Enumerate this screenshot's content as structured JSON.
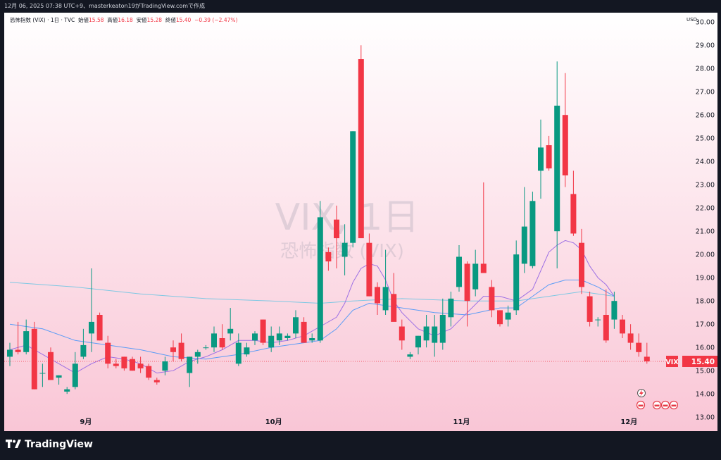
{
  "caption": "12月 06, 2025 07:38 UTC+9、masterkeaton19がTradingView.comで作成",
  "legend": {
    "symbol": "恐怖指数 (VIX) · 1日 · TVC",
    "open_label": "始値",
    "open": "15.58",
    "high_label": "高値",
    "high": "16.18",
    "low_label": "安値",
    "low": "15.28",
    "close_label": "終値",
    "close": "15.40",
    "change": "−0.39 (−2.47%)"
  },
  "watermark": {
    "main": "VIX, 1日",
    "sub": "恐怖指数 (VIX)"
  },
  "currency": "USD",
  "last_price": {
    "symbol": "VIX",
    "value": "15.40"
  },
  "brand": {
    "name": "TradingView",
    "icon": "tradingview-logo-icon"
  },
  "colors": {
    "up": "#089981",
    "down": "#f23645",
    "ma_short": "#9c6fe4",
    "ma_mid": "#5b9cf6",
    "ma_long": "#7ec8e3"
  },
  "chart_data": {
    "type": "candlestick",
    "ylim": [
      12.4,
      30.4
    ],
    "y_ticks": [
      "13.00",
      "14.00",
      "15.00",
      "16.00",
      "17.00",
      "18.00",
      "19.00",
      "20.00",
      "21.00",
      "22.00",
      "23.00",
      "24.00",
      "25.00",
      "26.00",
      "27.00",
      "28.00",
      "29.00",
      "30.00"
    ],
    "x_ticks": [
      "9月",
      "10月",
      "11月",
      "12月"
    ],
    "tick_index": [
      9.3,
      32.3,
      55.3,
      75.8
    ],
    "ohlc": [
      [
        15.6,
        16.2,
        15.2,
        15.9
      ],
      [
        15.9,
        17.1,
        15.7,
        15.8
      ],
      [
        15.8,
        17.2,
        15.7,
        16.7
      ],
      [
        16.8,
        17.1,
        14.2,
        14.2
      ],
      [
        14.9,
        15.3,
        14.3,
        14.9
      ],
      [
        15.8,
        16.0,
        14.6,
        14.6
      ],
      [
        14.7,
        14.8,
        14.4,
        14.8
      ],
      [
        14.1,
        14.3,
        14.0,
        14.2
      ],
      [
        14.3,
        15.8,
        14.2,
        15.3
      ],
      [
        15.6,
        16.8,
        15.5,
        16.1
      ],
      [
        16.6,
        19.4,
        15.8,
        17.1
      ],
      [
        17.4,
        17.5,
        16.3,
        16.3
      ],
      [
        16.2,
        16.5,
        15.1,
        15.3
      ],
      [
        15.3,
        15.5,
        15.1,
        15.2
      ],
      [
        15.6,
        15.6,
        15.0,
        15.1
      ],
      [
        15.5,
        15.6,
        15.0,
        15.0
      ],
      [
        15.3,
        15.6,
        14.9,
        15.1
      ],
      [
        15.2,
        15.3,
        14.6,
        14.7
      ],
      [
        14.6,
        14.7,
        14.4,
        14.5
      ],
      [
        15.0,
        15.6,
        14.8,
        15.4
      ],
      [
        16.0,
        16.3,
        15.4,
        15.8
      ],
      [
        16.2,
        16.6,
        15.4,
        15.5
      ],
      [
        14.9,
        15.6,
        14.3,
        15.6
      ],
      [
        15.6,
        15.9,
        15.3,
        15.8
      ],
      [
        16.0,
        16.1,
        15.9,
        16.0
      ],
      [
        16.0,
        16.9,
        15.8,
        16.6
      ],
      [
        16.4,
        17.0,
        15.9,
        16.0
      ],
      [
        16.6,
        17.7,
        16.3,
        16.8
      ],
      [
        15.3,
        16.6,
        15.2,
        16.2
      ],
      [
        15.7,
        16.2,
        15.6,
        16.0
      ],
      [
        16.3,
        16.7,
        16.1,
        16.6
      ],
      [
        17.2,
        17.2,
        16.1,
        16.2
      ],
      [
        16.0,
        16.9,
        15.8,
        16.5
      ],
      [
        16.3,
        16.9,
        16.1,
        16.6
      ],
      [
        16.4,
        16.6,
        16.3,
        16.5
      ],
      [
        16.6,
        17.6,
        16.4,
        17.3
      ],
      [
        17.1,
        17.3,
        16.3,
        16.2
      ],
      [
        16.3,
        16.6,
        16.2,
        16.4
      ],
      [
        16.3,
        22.3,
        16.2,
        21.6
      ],
      [
        20.1,
        20.3,
        19.3,
        19.7
      ],
      [
        21.5,
        22.1,
        19.4,
        20.7
      ],
      [
        19.9,
        21.3,
        19.1,
        20.5
      ],
      [
        20.5,
        25.3,
        20.3,
        25.3
      ],
      [
        28.4,
        29.0,
        20.8,
        20.7
      ],
      [
        20.5,
        20.9,
        18.2,
        18.2
      ],
      [
        18.6,
        18.8,
        17.4,
        17.9
      ],
      [
        17.6,
        20.2,
        17.4,
        18.6
      ],
      [
        18.3,
        19.2,
        17.2,
        17.1
      ],
      [
        16.9,
        17.2,
        15.9,
        16.3
      ],
      [
        15.6,
        15.8,
        15.5,
        15.7
      ],
      [
        16.0,
        16.5,
        15.7,
        16.5
      ],
      [
        16.3,
        17.4,
        16.0,
        16.9
      ],
      [
        16.2,
        17.4,
        15.6,
        16.9
      ],
      [
        16.2,
        18.1,
        15.9,
        17.4
      ],
      [
        17.3,
        18.4,
        16.9,
        18.1
      ],
      [
        18.6,
        20.4,
        18.4,
        19.9
      ],
      [
        19.6,
        19.7,
        16.9,
        18.0
      ],
      [
        18.5,
        20.2,
        18.2,
        19.6
      ],
      [
        19.6,
        23.1,
        19.3,
        19.2
      ],
      [
        18.6,
        18.9,
        17.3,
        17.6
      ],
      [
        17.6,
        17.6,
        16.9,
        17.0
      ],
      [
        17.2,
        17.8,
        16.9,
        17.5
      ],
      [
        17.6,
        20.6,
        17.4,
        20.0
      ],
      [
        19.6,
        22.9,
        19.2,
        21.2
      ],
      [
        19.5,
        22.7,
        19.4,
        22.3
      ],
      [
        23.6,
        25.8,
        22.4,
        24.6
      ],
      [
        24.7,
        25.1,
        23.6,
        23.7
      ],
      [
        21.0,
        28.3,
        19.4,
        26.4
      ],
      [
        26.0,
        27.8,
        22.9,
        23.4
      ],
      [
        22.6,
        23.6,
        20.8,
        20.9
      ],
      [
        20.5,
        21.1,
        18.3,
        18.6
      ],
      [
        18.2,
        18.4,
        16.9,
        17.1
      ],
      [
        17.2,
        17.3,
        16.9,
        17.2
      ],
      [
        17.4,
        18.5,
        16.2,
        16.3
      ],
      [
        17.2,
        18.4,
        16.8,
        18.0
      ],
      [
        17.2,
        17.4,
        16.4,
        16.6
      ],
      [
        16.6,
        17.0,
        15.9,
        16.2
      ],
      [
        16.2,
        16.6,
        15.6,
        15.8
      ],
      [
        15.6,
        16.2,
        15.3,
        15.4
      ]
    ],
    "ma_short": [
      [
        0,
        15.9
      ],
      [
        2,
        16.1
      ],
      [
        4,
        15.7
      ],
      [
        6,
        15.3
      ],
      [
        8,
        14.9
      ],
      [
        10,
        15.3
      ],
      [
        12,
        15.6
      ],
      [
        14,
        15.5
      ],
      [
        16,
        15.3
      ],
      [
        18,
        14.9
      ],
      [
        20,
        15.0
      ],
      [
        22,
        15.4
      ],
      [
        24,
        15.6
      ],
      [
        26,
        15.9
      ],
      [
        28,
        16.3
      ],
      [
        30,
        16.3
      ],
      [
        32,
        16.2
      ],
      [
        34,
        16.3
      ],
      [
        36,
        16.5
      ],
      [
        38,
        16.9
      ],
      [
        40,
        17.3
      ],
      [
        41,
        17.9
      ],
      [
        42,
        18.8
      ],
      [
        43,
        19.4
      ],
      [
        44,
        19.6
      ],
      [
        45,
        19.5
      ],
      [
        46,
        18.9
      ],
      [
        47,
        18.0
      ],
      [
        48,
        17.5
      ],
      [
        50,
        16.8
      ],
      [
        52,
        16.5
      ],
      [
        54,
        16.8
      ],
      [
        56,
        17.5
      ],
      [
        58,
        18.2
      ],
      [
        60,
        18.2
      ],
      [
        62,
        18.0
      ],
      [
        64,
        18.5
      ],
      [
        65,
        19.3
      ],
      [
        66,
        20.1
      ],
      [
        67,
        20.4
      ],
      [
        68,
        20.6
      ],
      [
        69,
        20.5
      ],
      [
        70,
        20.2
      ],
      [
        71,
        19.5
      ],
      [
        72,
        19.0
      ],
      [
        73,
        18.7
      ],
      [
        74,
        18.2
      ]
    ],
    "ma_mid": [
      [
        0,
        17.0
      ],
      [
        4,
        16.8
      ],
      [
        8,
        16.3
      ],
      [
        12,
        16.1
      ],
      [
        16,
        15.9
      ],
      [
        20,
        15.6
      ],
      [
        24,
        15.5
      ],
      [
        28,
        15.7
      ],
      [
        32,
        16.0
      ],
      [
        36,
        16.2
      ],
      [
        38,
        16.3
      ],
      [
        40,
        16.8
      ],
      [
        42,
        17.6
      ],
      [
        44,
        17.9
      ],
      [
        48,
        17.7
      ],
      [
        52,
        17.5
      ],
      [
        56,
        17.4
      ],
      [
        60,
        17.7
      ],
      [
        62,
        17.7
      ],
      [
        64,
        18.2
      ],
      [
        66,
        18.7
      ],
      [
        68,
        18.9
      ],
      [
        70,
        18.9
      ],
      [
        72,
        18.6
      ],
      [
        74,
        18.2
      ]
    ],
    "ma_long": [
      [
        0,
        18.8
      ],
      [
        8,
        18.6
      ],
      [
        16,
        18.3
      ],
      [
        24,
        18.1
      ],
      [
        32,
        18.0
      ],
      [
        38,
        17.9
      ],
      [
        42,
        18.0
      ],
      [
        48,
        18.1
      ],
      [
        56,
        18.0
      ],
      [
        62,
        18.0
      ],
      [
        66,
        18.2
      ],
      [
        70,
        18.4
      ],
      [
        74,
        18.2
      ]
    ]
  }
}
